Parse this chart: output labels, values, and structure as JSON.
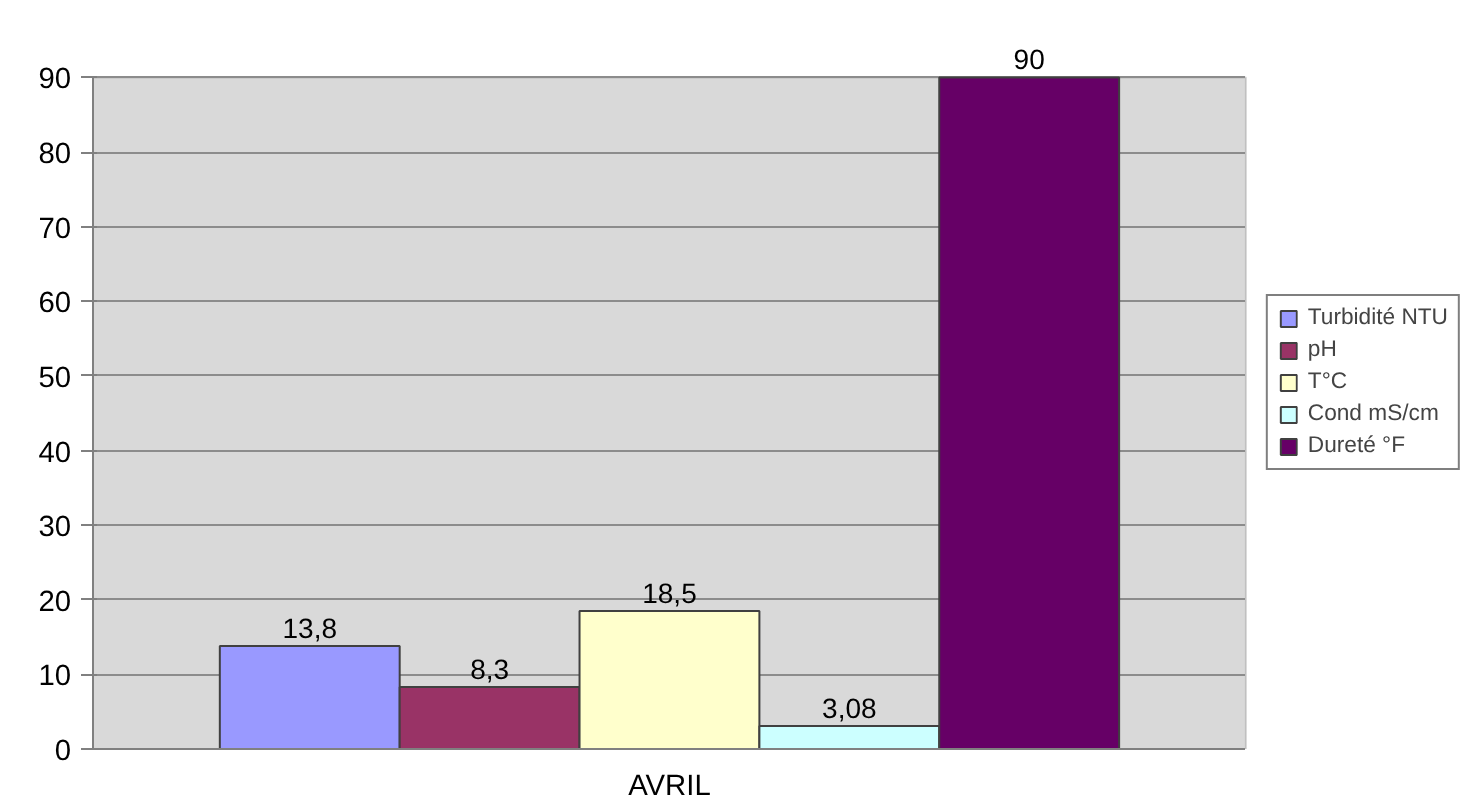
{
  "chart_data": {
    "type": "bar",
    "categories": [
      "AVRIL"
    ],
    "series": [
      {
        "name": "Turbidité NTU",
        "color": "#9999ff",
        "values": [
          13.8
        ],
        "value_labels": [
          "13,8"
        ]
      },
      {
        "name": "pH",
        "color": "#993366",
        "values": [
          8.3
        ],
        "value_labels": [
          "8,3"
        ]
      },
      {
        "name": "T°C",
        "color": "#ffffcc",
        "values": [
          18.5
        ],
        "value_labels": [
          "18,5"
        ]
      },
      {
        "name": "Cond mS/cm",
        "color": "#ccffff",
        "values": [
          3.08
        ],
        "value_labels": [
          "3,08"
        ]
      },
      {
        "name": "Dureté °F",
        "color": "#660066",
        "values": [
          90
        ],
        "value_labels": [
          "90"
        ]
      }
    ],
    "ylim": [
      0,
      90
    ],
    "yticks": [
      0,
      10,
      20,
      30,
      40,
      50,
      60,
      70,
      80,
      90
    ],
    "grid": "y",
    "legend": "right"
  }
}
